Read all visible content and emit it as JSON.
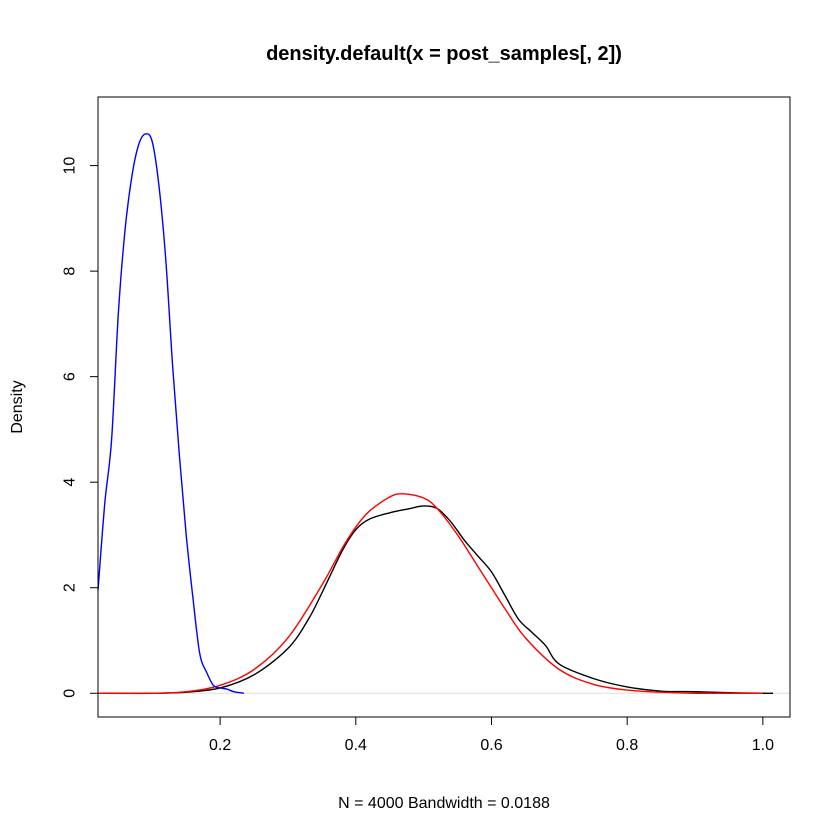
{
  "chart_data": {
    "type": "line",
    "title": "density.default(x = post_samples[, 2])",
    "xlabel": "N = 4000   Bandwidth = 0.0188",
    "ylabel": "Density",
    "xlim": [
      0.02,
      1.04
    ],
    "ylim": [
      -0.45,
      11.3
    ],
    "x_ticks": [
      0.2,
      0.4,
      0.6,
      0.8,
      1.0
    ],
    "x_tick_labels": [
      "0.2",
      "0.4",
      "0.6",
      "0.8",
      "1.0"
    ],
    "y_ticks": [
      0,
      2,
      4,
      6,
      8,
      10
    ],
    "y_tick_labels": [
      "0",
      "2",
      "4",
      "6",
      "8",
      "10"
    ],
    "grid": false,
    "baseline": {
      "y": 0,
      "color": "#dddddd"
    },
    "series": [
      {
        "color": "#000000",
        "x": [
          0.02,
          0.1,
          0.15,
          0.2,
          0.25,
          0.3,
          0.33,
          0.35,
          0.38,
          0.4,
          0.42,
          0.45,
          0.48,
          0.5,
          0.52,
          0.54,
          0.56,
          0.58,
          0.6,
          0.62,
          0.64,
          0.66,
          0.68,
          0.7,
          0.75,
          0.8,
          0.85,
          0.9,
          0.95,
          1.0,
          1.015
        ],
        "y": [
          0.0,
          0.0,
          0.02,
          0.1,
          0.35,
          0.85,
          1.4,
          1.9,
          2.7,
          3.1,
          3.3,
          3.42,
          3.5,
          3.55,
          3.5,
          3.25,
          2.9,
          2.6,
          2.3,
          1.85,
          1.4,
          1.15,
          0.9,
          0.55,
          0.28,
          0.12,
          0.04,
          0.03,
          0.01,
          0.0,
          0.0
        ]
      },
      {
        "color": "#ff0000",
        "x": [
          0.02,
          0.1,
          0.15,
          0.2,
          0.25,
          0.3,
          0.35,
          0.38,
          0.4,
          0.42,
          0.45,
          0.47,
          0.5,
          0.52,
          0.55,
          0.58,
          0.6,
          0.62,
          0.65,
          0.7,
          0.75,
          0.8,
          0.85,
          0.9,
          0.95,
          1.0
        ],
        "y": [
          0.0,
          0.0,
          0.03,
          0.15,
          0.45,
          1.05,
          2.05,
          2.75,
          3.15,
          3.45,
          3.72,
          3.78,
          3.7,
          3.5,
          3.0,
          2.4,
          2.0,
          1.6,
          1.05,
          0.45,
          0.17,
          0.06,
          0.02,
          0.0,
          0.0,
          0.0
        ]
      },
      {
        "color": "#0000ff",
        "x": [
          0.02,
          0.03,
          0.04,
          0.05,
          0.06,
          0.07,
          0.08,
          0.09,
          0.1,
          0.11,
          0.12,
          0.13,
          0.14,
          0.15,
          0.16,
          0.17,
          0.18,
          0.19,
          0.2,
          0.21,
          0.22,
          0.235
        ],
        "y": [
          1.95,
          3.6,
          4.8,
          7.2,
          8.8,
          9.8,
          10.4,
          10.6,
          10.45,
          9.6,
          8.2,
          6.2,
          4.5,
          3.0,
          1.8,
          0.75,
          0.4,
          0.15,
          0.1,
          0.08,
          0.03,
          0.0
        ]
      }
    ]
  }
}
